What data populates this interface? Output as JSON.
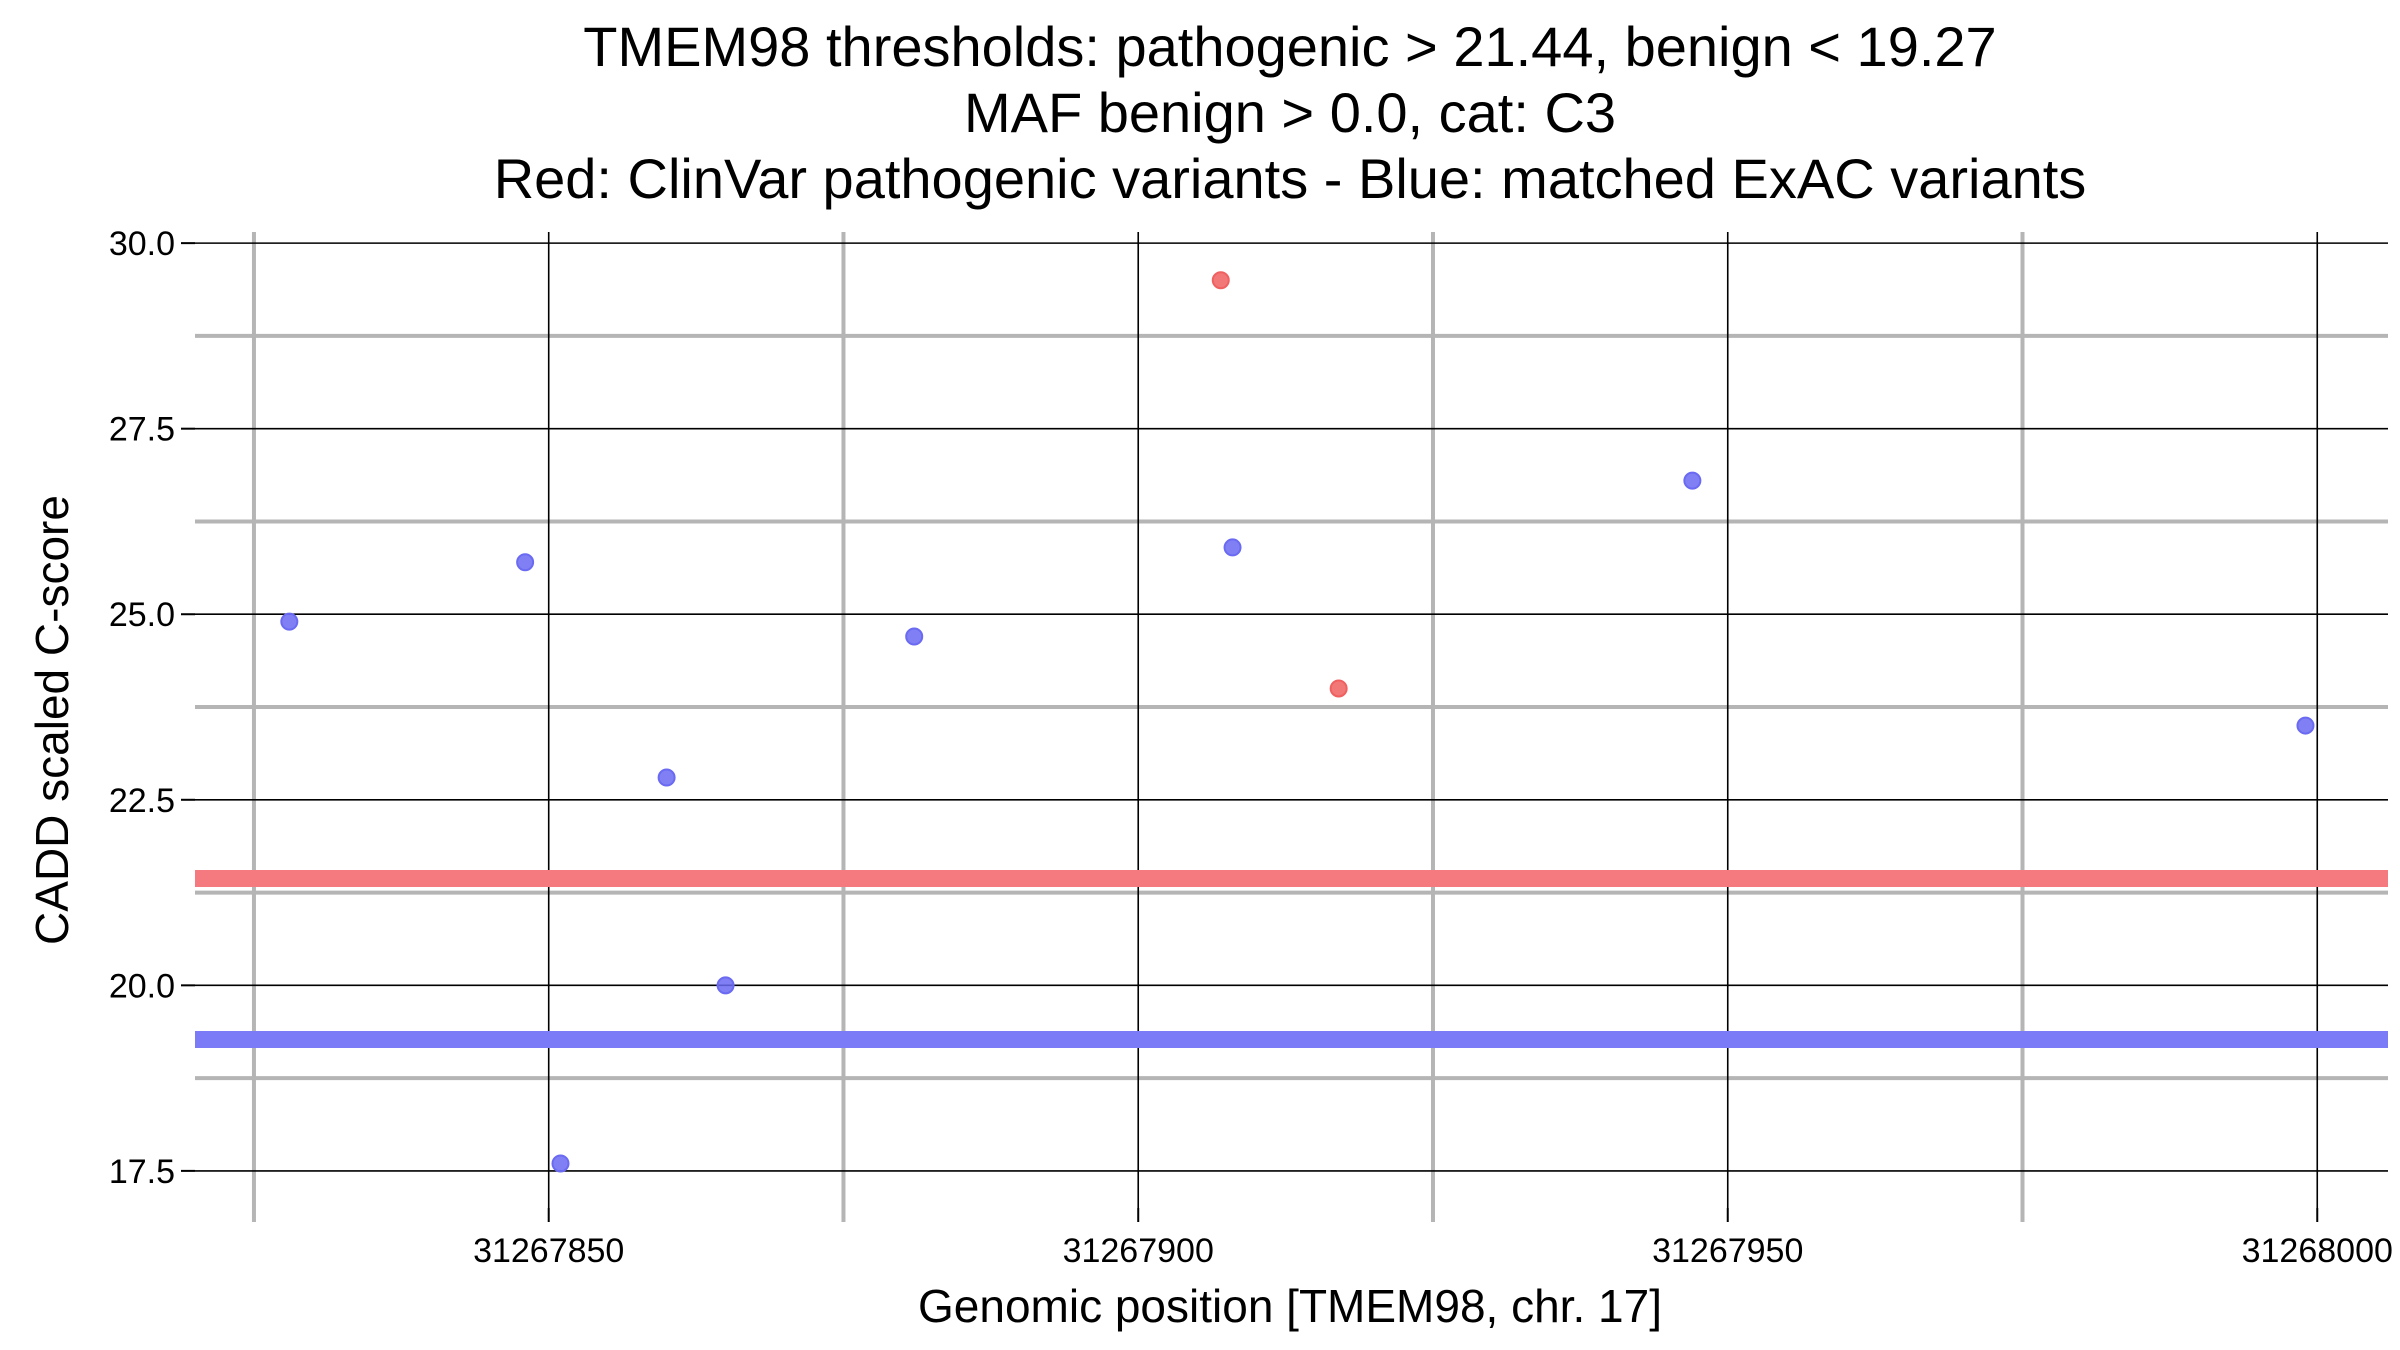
{
  "chart_data": {
    "type": "scatter",
    "title_lines": [
      "TMEM98 thresholds: pathogenic > 21.44, benign < 19.27",
      "MAF benign > 0.0, cat: C3",
      "Red: ClinVar pathogenic variants - Blue: matched ExAC variants"
    ],
    "xlabel": "Genomic position [TMEM98, chr. 17]",
    "ylabel": "CADD scaled C-score",
    "xlim": [
      31267820,
      31268006
    ],
    "ylim": [
      17,
      30.15
    ],
    "x_ticks": [
      31267850,
      31267900,
      31267950,
      31268000
    ],
    "x_tick_labels": [
      "31267850",
      "31267900",
      "31267950",
      "31268000"
    ],
    "x_minor_grid": [
      31267825,
      31267875,
      31267925,
      31267975
    ],
    "y_ticks": [
      17.5,
      20.0,
      22.5,
      25.0,
      27.5,
      30.0
    ],
    "y_tick_labels": [
      "17.5",
      "20.0",
      "22.5",
      "25.0",
      "27.5",
      "30.0"
    ],
    "y_minor_grid": [
      18.75,
      21.25,
      23.75,
      26.25,
      28.75
    ],
    "thresholds": [
      {
        "name": "pathogenic",
        "value": 21.44,
        "color": "#f47a7f"
      },
      {
        "name": "benign",
        "value": 19.27,
        "color": "#7b7bf7"
      }
    ],
    "series": [
      {
        "name": "ClinVar pathogenic variants",
        "color": "#f06060",
        "points": [
          {
            "x": 31267907,
            "y": 29.5
          },
          {
            "x": 31267917,
            "y": 24.0
          }
        ]
      },
      {
        "name": "matched ExAC variants",
        "color": "#6a6af2",
        "points": [
          {
            "x": 31267828,
            "y": 24.9
          },
          {
            "x": 31267848,
            "y": 25.7
          },
          {
            "x": 31267851,
            "y": 17.6
          },
          {
            "x": 31267860,
            "y": 22.8
          },
          {
            "x": 31267865,
            "y": 20.0
          },
          {
            "x": 31267881,
            "y": 24.7
          },
          {
            "x": 31267908,
            "y": 25.9
          },
          {
            "x": 31267947,
            "y": 26.8
          },
          {
            "x": 31267999,
            "y": 23.5
          }
        ]
      }
    ]
  }
}
